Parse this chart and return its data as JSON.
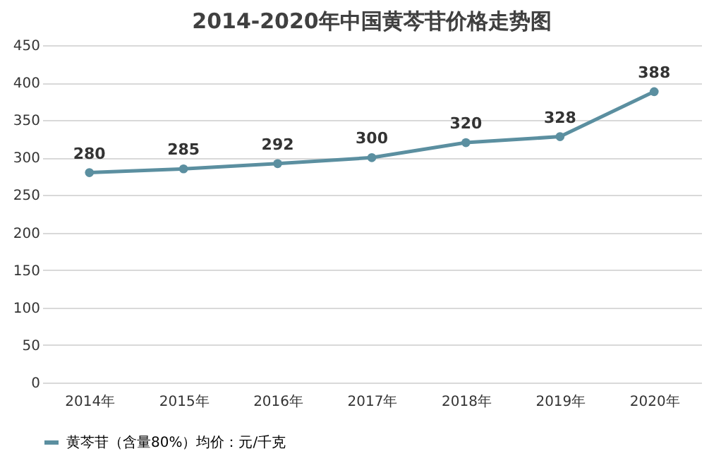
{
  "chart_data": {
    "type": "line",
    "title": "2014-2020年中国黄芩苷价格走势图",
    "categories": [
      "2014年",
      "2015年",
      "2016年",
      "2017年",
      "2018年",
      "2019年",
      "2020年"
    ],
    "series": [
      {
        "name": "黄芩苷（含量80%）均价：元/千克",
        "color": "#5b8fa0",
        "values": [
          280,
          285,
          292,
          300,
          320,
          328,
          388
        ]
      }
    ],
    "ylim": [
      0,
      450
    ],
    "yticks": [
      0,
      50,
      100,
      150,
      200,
      250,
      300,
      350,
      400,
      450
    ],
    "grid": "y",
    "legend": "bottom",
    "marker": "circle",
    "line_style": "solid",
    "data_labels": true
  }
}
